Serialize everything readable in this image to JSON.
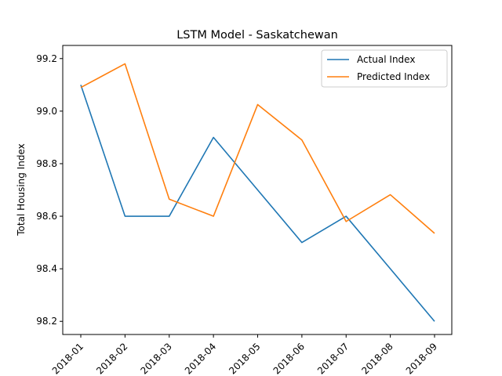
{
  "chart_data": {
    "type": "line",
    "title": "LSTM Model - Saskatchewan",
    "xlabel": "",
    "ylabel": "Total Housing Index",
    "categories": [
      "2018-01",
      "2018-02",
      "2018-03",
      "2018-04",
      "2018-05",
      "2018-06",
      "2018-07",
      "2018-08",
      "2018-09"
    ],
    "ylim": [
      98.15,
      99.25
    ],
    "yticks": [
      "98.2",
      "98.4",
      "98.6",
      "98.8",
      "99.0",
      "99.2"
    ],
    "grid": false,
    "legend_position": "top-right",
    "series": [
      {
        "name": "Actual Index",
        "color": "#1f77b4",
        "values": [
          99.1,
          98.6,
          98.6,
          98.9,
          98.7,
          98.5,
          98.6,
          98.4,
          98.2
        ]
      },
      {
        "name": "Predicted Index",
        "color": "#ff7f0e",
        "values": [
          99.09,
          99.18,
          98.665,
          98.6,
          99.025,
          98.89,
          98.58,
          98.682,
          98.535
        ]
      }
    ]
  }
}
